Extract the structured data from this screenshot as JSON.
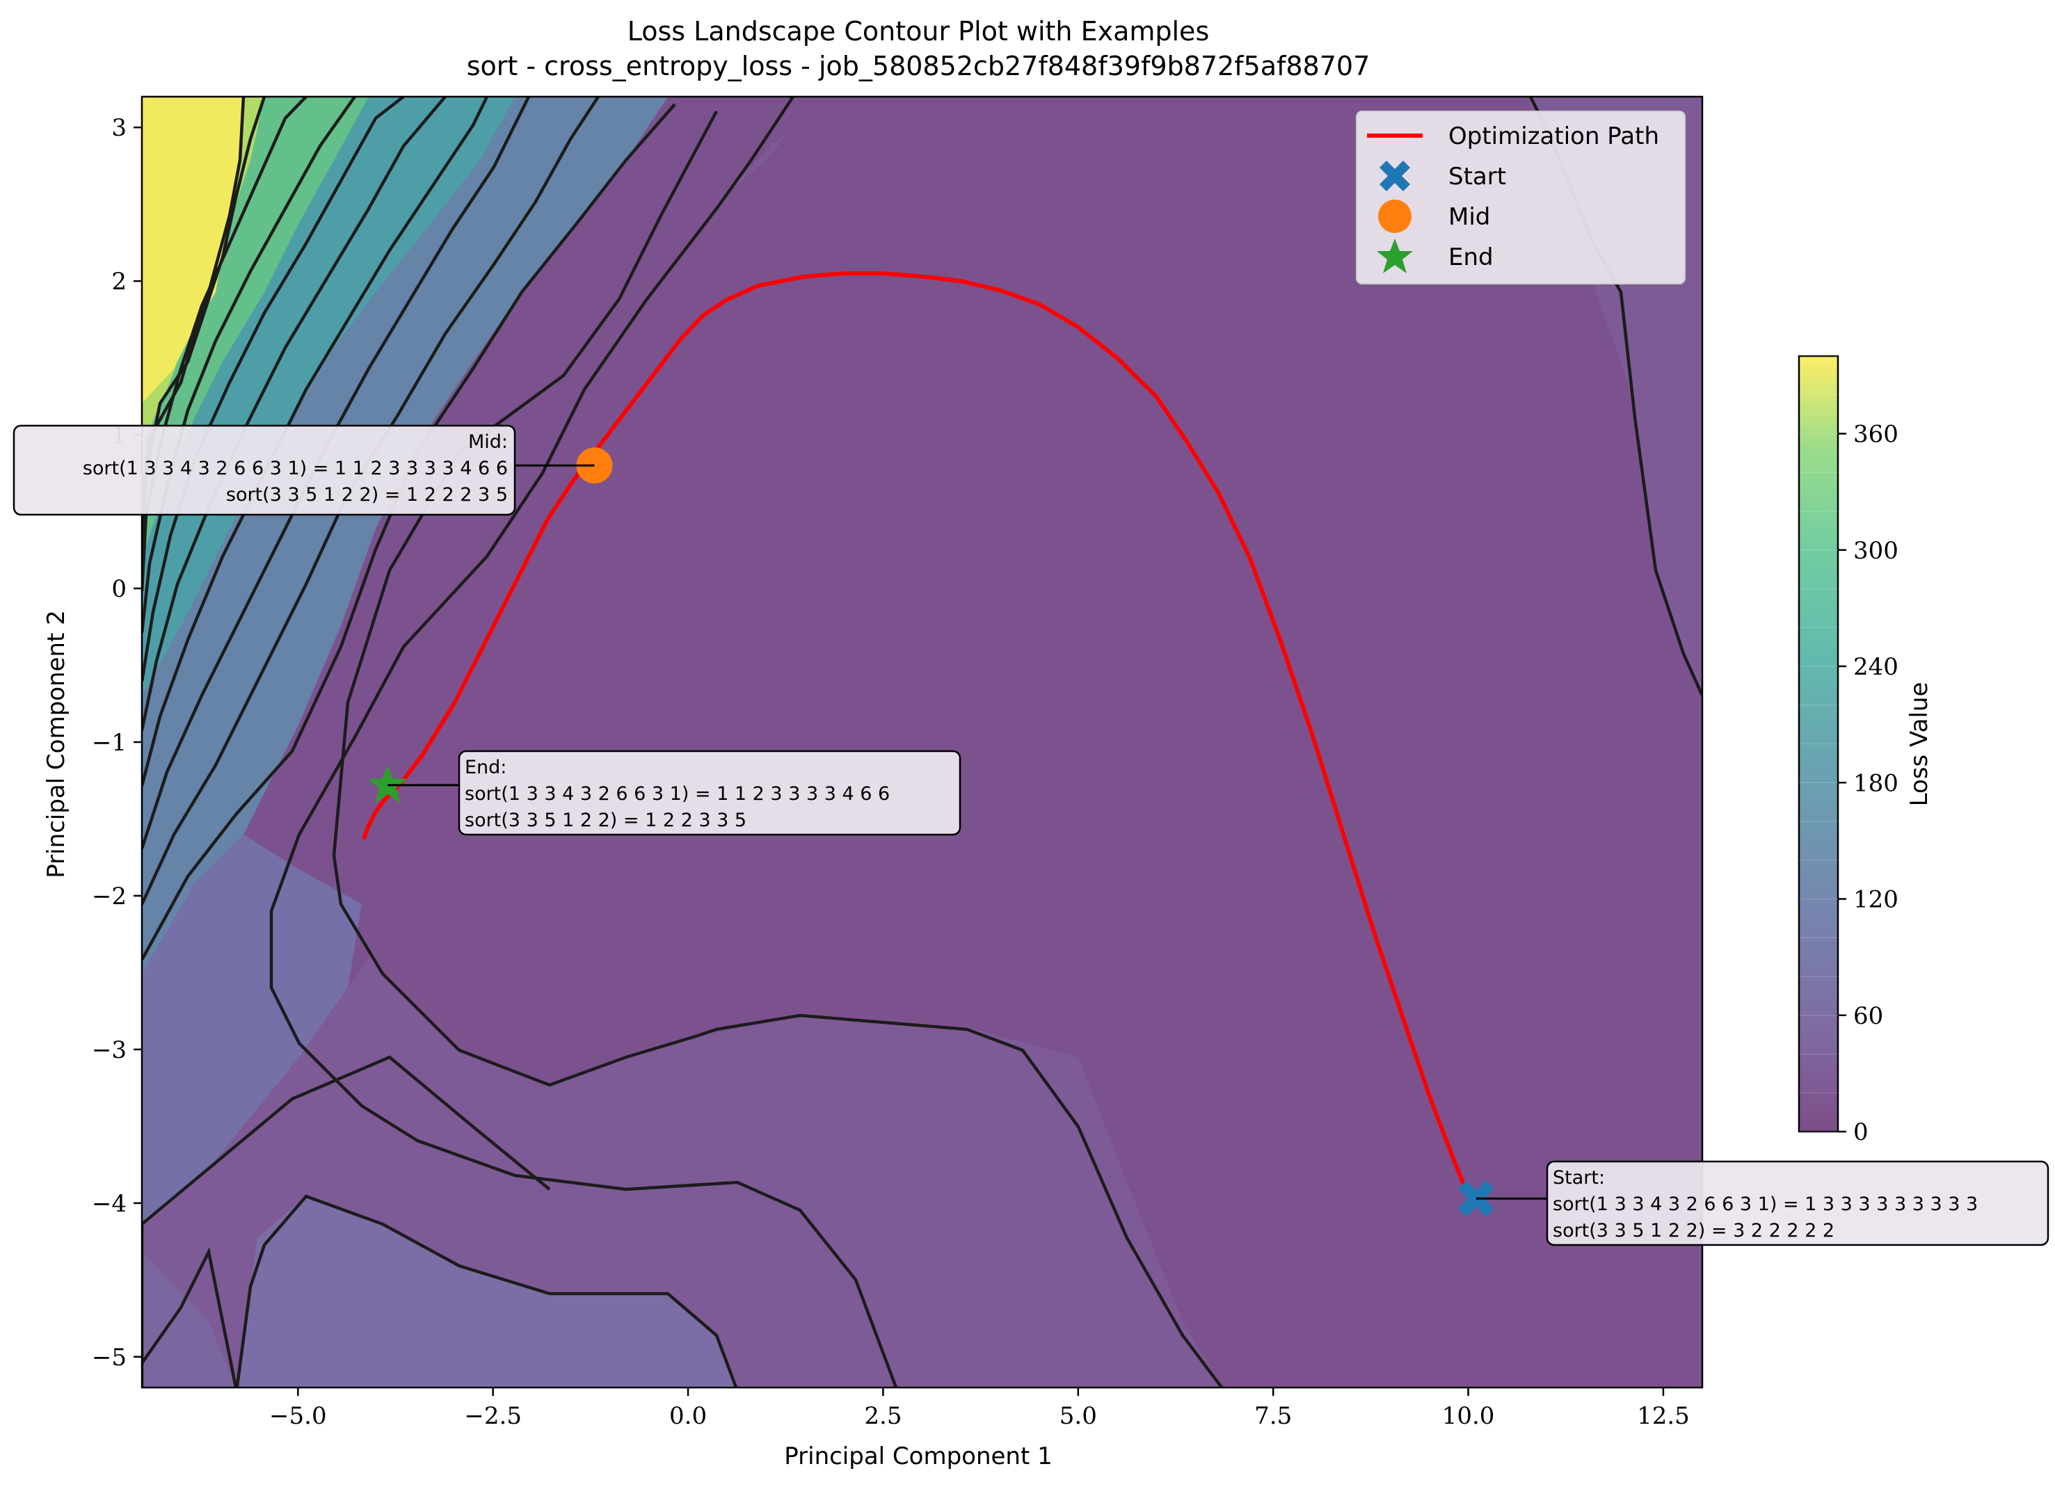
{
  "chart_data": {
    "type": "contour",
    "title": "Loss Landscape Contour Plot with Examples",
    "subtitle": "sort - cross_entropy_loss - job_580852cb27f848f39f9b872f5af88707",
    "xlabel": "Principal Component 1",
    "ylabel": "Principal Component 2",
    "xlim": [
      -7.0,
      13.0
    ],
    "ylim": [
      -5.2,
      3.2
    ],
    "x_ticks": [
      -5.0,
      -2.5,
      0.0,
      2.5,
      5.0,
      7.5,
      10.0,
      12.5
    ],
    "x_tick_labels": [
      "−5.0",
      "−2.5",
      "0.0",
      "2.5",
      "5.0",
      "7.5",
      "10.0",
      "12.5"
    ],
    "y_ticks": [
      -5,
      -4,
      -3,
      -2,
      -1,
      0,
      1,
      2,
      3
    ],
    "y_tick_labels": [
      "−5",
      "−4",
      "−3",
      "−2",
      "−1",
      "0",
      "1",
      "2",
      "3"
    ],
    "colorbar": {
      "label": "Loss Value",
      "range": [
        0,
        400
      ],
      "ticks": [
        0,
        60,
        120,
        180,
        240,
        300,
        360
      ],
      "tick_labels": [
        "0",
        "60",
        "120",
        "180",
        "240",
        "300",
        "360"
      ],
      "colormap": "viridis"
    },
    "grid": false,
    "legend": {
      "placement": "upper-right",
      "entries": [
        {
          "label": "Optimization Path",
          "marker": "line",
          "color": "#ff0000"
        },
        {
          "label": "Start",
          "marker": "X",
          "color": "#1f77b4"
        },
        {
          "label": "Mid",
          "marker": "circle",
          "color": "#ff7f0e"
        },
        {
          "label": "End",
          "marker": "star",
          "color": "#2ca02c"
        }
      ]
    },
    "series": [
      {
        "name": "Optimization Path",
        "color": "#ff0000",
        "x": [
          10.0,
          9.8,
          9.5,
          9.2,
          8.8,
          8.4,
          8.0,
          7.6,
          7.2,
          6.8,
          6.4,
          6.0,
          5.5,
          5.0,
          4.5,
          4.0,
          3.5,
          3.0,
          2.5,
          2.0,
          1.5,
          1.2,
          0.9,
          0.5,
          0.2,
          -0.1,
          -0.4,
          -0.7,
          -1.0,
          -1.3,
          -1.5,
          -1.8,
          -2.2,
          -2.6,
          -3.0,
          -3.4,
          -3.7,
          -3.9,
          -4.0,
          -4.1,
          -4.15
        ],
        "y": [
          -3.95,
          -3.7,
          -3.3,
          -2.85,
          -2.25,
          -1.6,
          -0.95,
          -0.35,
          0.2,
          0.62,
          0.95,
          1.25,
          1.5,
          1.7,
          1.85,
          1.94,
          2.0,
          2.03,
          2.05,
          2.05,
          2.03,
          2.0,
          1.97,
          1.88,
          1.78,
          1.62,
          1.42,
          1.22,
          1.02,
          0.82,
          0.68,
          0.45,
          0.05,
          -0.35,
          -0.75,
          -1.08,
          -1.28,
          -1.38,
          -1.45,
          -1.55,
          -1.62
        ]
      }
    ],
    "markers": [
      {
        "name": "Start",
        "x": 10.1,
        "y": -3.97,
        "color": "#1f77b4",
        "shape": "X"
      },
      {
        "name": "Mid",
        "x": -1.2,
        "y": 0.8,
        "color": "#ff7f0e",
        "shape": "circle"
      },
      {
        "name": "End",
        "x": -3.85,
        "y": -1.28,
        "color": "#2ca02c",
        "shape": "star"
      }
    ],
    "annotations": [
      {
        "point": "Mid",
        "lines": [
          "Mid:",
          "sort(1 3 3 4 3 2 6 6 3 1) = 1 1 2 3 3 3 3 4 6 6",
          "sort(3 3 5 1 2 2) = 1 2 2 2 3 5"
        ]
      },
      {
        "point": "End",
        "lines": [
          "End:",
          "sort(1 3 3 4 3 2 6 6 3 1) = 1 1 2 3 3 3 3 4 6 6",
          "sort(3 3 5 1 2 2) = 1 2 2 3 3 5"
        ]
      },
      {
        "point": "Start",
        "lines": [
          "Start:",
          "sort(1 3 3 4 3 2 6 6 3 1) = 1 3 3 3 3 3 3 3 3 3",
          "sort(3 3 5 1 2 2) = 3 2 2 2 2 2"
        ]
      }
    ]
  }
}
